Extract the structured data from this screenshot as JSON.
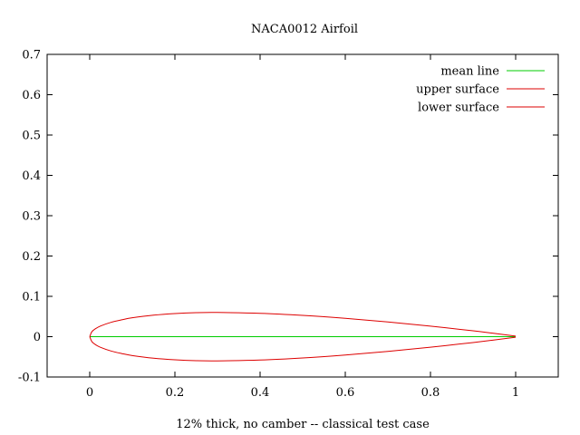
{
  "chart_data": {
    "type": "line",
    "title": "NACA0012 Airfoil",
    "xlabel": "12% thick, no camber -- classical test case",
    "ylabel": "",
    "xlim": [
      -0.1,
      1.1
    ],
    "ylim": [
      -0.1,
      0.7
    ],
    "xticks": [
      0,
      0.2,
      0.4,
      0.6,
      0.8,
      1
    ],
    "yticks": [
      -0.1,
      0,
      0.1,
      0.2,
      0.3,
      0.4,
      0.5,
      0.6,
      0.7
    ],
    "grid": false,
    "legend_position": "top-right",
    "series": [
      {
        "name": "mean line",
        "color": "#00cc00",
        "x": [
          0,
          1
        ],
        "y": [
          0,
          0
        ]
      },
      {
        "name": "upper surface",
        "color": "#dd0000",
        "x": [
          0,
          0.005,
          0.0125,
          0.025,
          0.05,
          0.075,
          0.1,
          0.15,
          0.2,
          0.25,
          0.3,
          0.4,
          0.5,
          0.6,
          0.7,
          0.8,
          0.9,
          0.95,
          1
        ],
        "y": [
          0,
          0.0122,
          0.019,
          0.0263,
          0.0355,
          0.0418,
          0.0468,
          0.0534,
          0.0574,
          0.0596,
          0.06,
          0.058,
          0.0529,
          0.0456,
          0.0366,
          0.0262,
          0.0145,
          0.0081,
          0.0013
        ]
      },
      {
        "name": "lower surface",
        "color": "#dd0000",
        "x": [
          0,
          0.005,
          0.0125,
          0.025,
          0.05,
          0.075,
          0.1,
          0.15,
          0.2,
          0.25,
          0.3,
          0.4,
          0.5,
          0.6,
          0.7,
          0.8,
          0.9,
          0.95,
          1
        ],
        "y": [
          0,
          -0.0122,
          -0.019,
          -0.0263,
          -0.0355,
          -0.0418,
          -0.0468,
          -0.0534,
          -0.0574,
          -0.0596,
          -0.06,
          -0.058,
          -0.0529,
          -0.0456,
          -0.0366,
          -0.0262,
          -0.0145,
          -0.0081,
          -0.0013
        ]
      }
    ]
  }
}
